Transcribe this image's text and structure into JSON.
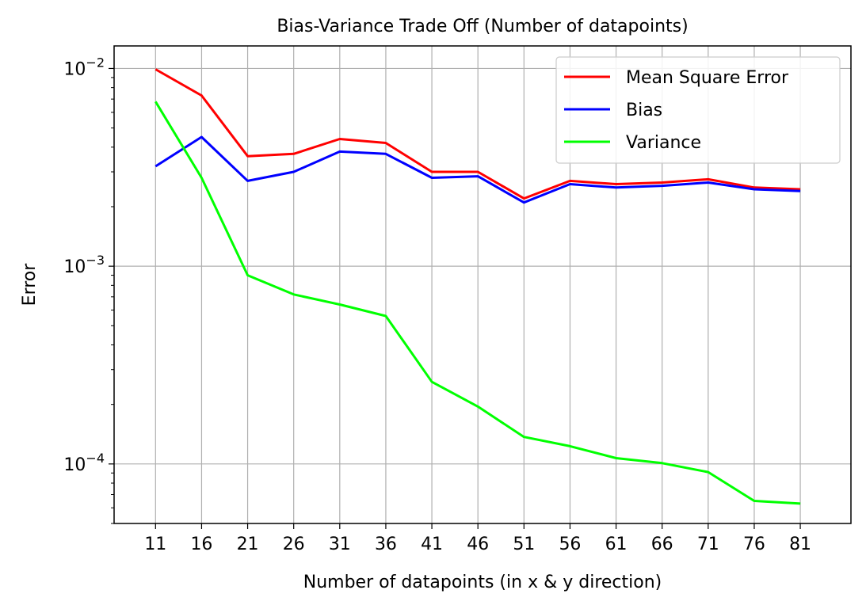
{
  "chart_data": {
    "type": "line",
    "title": "Bias-Variance Trade Off (Number of datapoints)",
    "xlabel": "Number of datapoints (in x & y direction)",
    "ylabel": "Error",
    "yscale": "log",
    "ylim": [
      5e-05,
      0.013
    ],
    "x": [
      11,
      16,
      21,
      26,
      31,
      36,
      41,
      46,
      51,
      56,
      61,
      66,
      71,
      76,
      81
    ],
    "x_tick_labels": [
      "11",
      "16",
      "21",
      "26",
      "31",
      "36",
      "41",
      "46",
      "51",
      "56",
      "61",
      "66",
      "71",
      "76",
      "81"
    ],
    "y_tick_labels": [
      {
        "value": 0.01,
        "base": "10",
        "exp": "−2"
      },
      {
        "value": 0.001,
        "base": "10",
        "exp": "−3"
      },
      {
        "value": 0.0001,
        "base": "10",
        "exp": "−4"
      }
    ],
    "grid": true,
    "legend_position": "top-right",
    "series": [
      {
        "name": "Mean Square Error",
        "color": "#ff0000",
        "values": [
          0.0099,
          0.0073,
          0.0036,
          0.0037,
          0.0044,
          0.0042,
          0.003,
          0.003,
          0.0022,
          0.0027,
          0.0026,
          0.00265,
          0.00275,
          0.0025,
          0.00245
        ]
      },
      {
        "name": "Bias",
        "color": "#0000ff",
        "values": [
          0.0032,
          0.0045,
          0.0027,
          0.003,
          0.0038,
          0.0037,
          0.0028,
          0.00285,
          0.0021,
          0.0026,
          0.0025,
          0.00255,
          0.00265,
          0.00245,
          0.0024
        ]
      },
      {
        "name": "Variance",
        "color": "#00ff00",
        "values": [
          0.0068,
          0.0028,
          0.0009,
          0.00072,
          0.00064,
          0.00056,
          0.00026,
          0.000195,
          0.000137,
          0.000123,
          0.000107,
          0.000101,
          9.1e-05,
          6.5e-05,
          6.3e-05
        ]
      }
    ]
  }
}
